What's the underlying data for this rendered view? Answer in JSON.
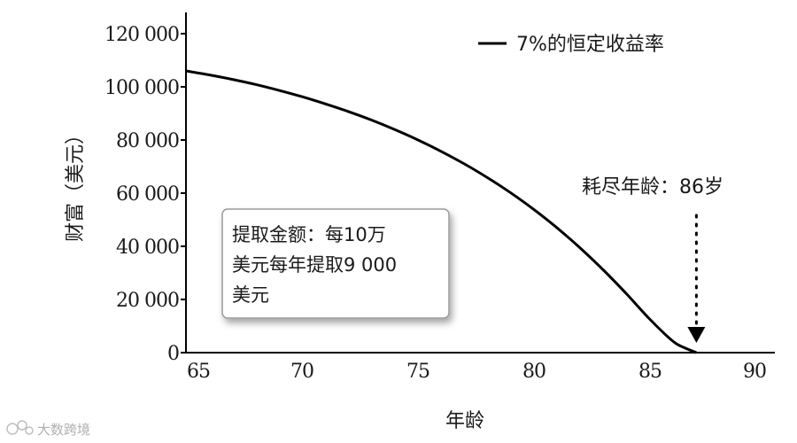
{
  "chart_data": {
    "type": "line",
    "xlabel": "年龄",
    "ylabel": "财富（美元）",
    "xlim": [
      65,
      90
    ],
    "ylim": [
      0,
      120000
    ],
    "x_ticks": [
      {
        "value": 65,
        "label": "65"
      },
      {
        "value": 70,
        "label": "70"
      },
      {
        "value": 75,
        "label": "75"
      },
      {
        "value": 80,
        "label": "80"
      },
      {
        "value": 85,
        "label": "85"
      },
      {
        "value": 90,
        "label": "90"
      }
    ],
    "y_ticks": [
      {
        "value": 0,
        "label": "0"
      },
      {
        "value": 20000,
        "label": "20 000"
      },
      {
        "value": 40000,
        "label": "40 000"
      },
      {
        "value": 60000,
        "label": "60 000"
      },
      {
        "value": 80000,
        "label": "80 000"
      },
      {
        "value": 100000,
        "label": "100 000"
      },
      {
        "value": 120000,
        "label": "120 000"
      }
    ],
    "series": [
      {
        "name": "7%的恒定收益率",
        "color": "#000000",
        "x": [
          65,
          66,
          67,
          68,
          69,
          70,
          71,
          72,
          73,
          74,
          75,
          76,
          77,
          78,
          79,
          80,
          81,
          82,
          83,
          84,
          85,
          86,
          86.5,
          87
        ],
        "values": [
          106000,
          104500,
          102800,
          100900,
          98700,
          96300,
          93600,
          90700,
          87500,
          83900,
          80000,
          75700,
          71000,
          65800,
          60100,
          53800,
          46900,
          39300,
          31000,
          22000,
          12500,
          4200,
          1800,
          0
        ]
      }
    ],
    "grid": false,
    "legend": {
      "position": "top-right",
      "label": "7%的恒定收益率"
    },
    "annotations": {
      "depletion": {
        "text": "耗尽年龄：86岁",
        "x": 87,
        "arrow": "dotted-down"
      },
      "box_lines": [
        "提取金额：每10万",
        "美元每年提取9 000",
        "美元"
      ]
    }
  },
  "watermark": {
    "text": "大数跨境",
    "logo_icon": "ke-logo-icon"
  }
}
